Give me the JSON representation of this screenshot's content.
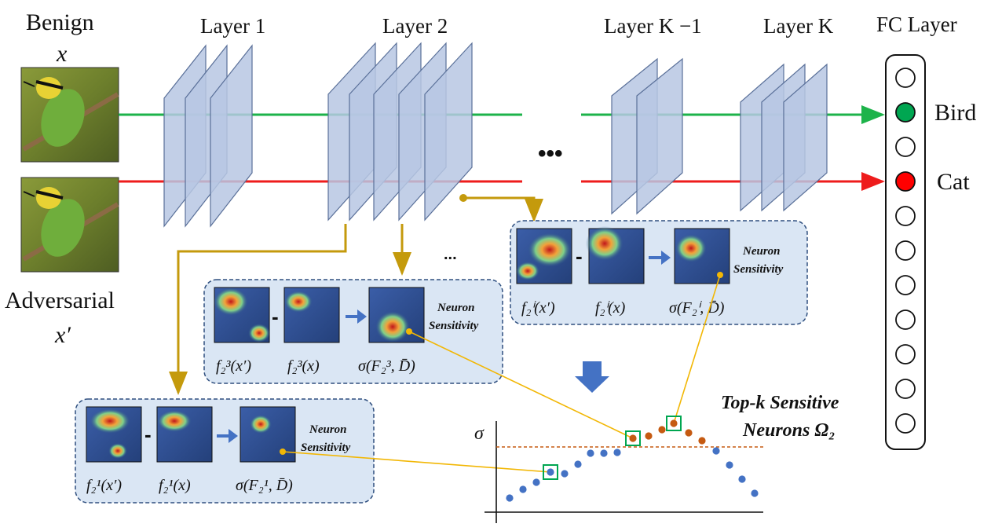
{
  "inputs": {
    "benign_label": "Benign",
    "benign_var": "x",
    "adversarial_label": "Adversarial",
    "adversarial_var": "x′"
  },
  "layers": {
    "layer1": "Layer 1",
    "layer2": "Layer 2",
    "layer_k_minus_1": "Layer K −1",
    "layer_k": "Layer K",
    "fc": "FC Layer",
    "ellipsis": "•••"
  },
  "outputs": {
    "bird": "Bird",
    "cat": "Cat"
  },
  "colors": {
    "benign_path": "#1db34a",
    "adversarial_path": "#ee1c1c",
    "layer_fill": "#b7c7e3",
    "arrow_gold": "#c49a0c",
    "panel_bg": "#dae6f4",
    "panel_border": "#2f4f7f",
    "blue_dot": "#4472c4",
    "orange_dot": "#c55a11",
    "neuron_green": "#00a651",
    "neuron_red": "#ff0000"
  },
  "panels": {
    "panel1": {
      "f_adv": "f₂¹(x′)",
      "f_ben": "f₂¹(x)",
      "sigma": "σ(F₂¹, D̄)",
      "minus": "-",
      "sens_line1": "Neuron",
      "sens_line2": "Sensitivity"
    },
    "panel3": {
      "f_adv": "f₂³(x′)",
      "f_ben": "f₂³(x)",
      "sigma": "σ(F₂³, D̄)",
      "minus": "-",
      "sens_line1": "Neuron",
      "sens_line2": "Sensitivity"
    },
    "panelI": {
      "f_adv": "f₂ⁱ(x′)",
      "f_ben": "f₂ⁱ(x)",
      "sigma": "σ(F₂ⁱ, D̄)",
      "minus": "-",
      "sens_line1": "Neuron",
      "sens_line2": "Sensitivity"
    },
    "mid_ellipsis": "..."
  },
  "plot": {
    "ylabel": "σ",
    "topk_line1": "Top-k Sensitive",
    "topk_line2": "Neurons Ω₂"
  }
}
